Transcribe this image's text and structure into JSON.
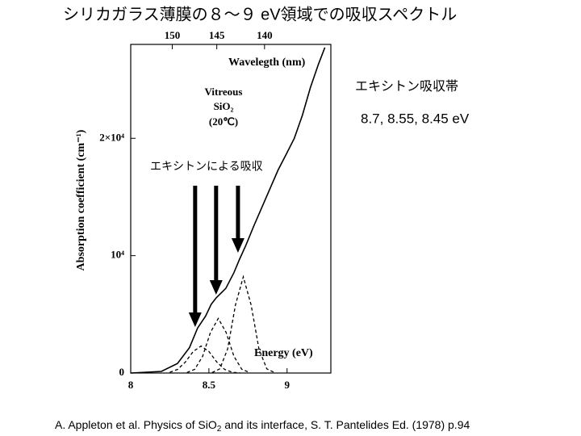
{
  "title": "シリカガラス薄膜の８～９ eV領域での吸収スペクトル",
  "side_note": {
    "heading": "エキシトン吸収帯",
    "values": "8.7, 8.55, 8.45 eV"
  },
  "citation": {
    "before": "A. Appleton et al. Physics of SiO",
    "sub": "2",
    "after": " and its interface, S. T. Pantelides Ed. (1978) p.94"
  },
  "chart_data": {
    "type": "line",
    "xlabel": "Energy (eV)",
    "ylabel": "Absorption coefficient (cm⁻¹)",
    "x2label": "Wavelegth (nm)",
    "xlim": [
      8,
      9.28
    ],
    "xticks": [
      8,
      8.5,
      9
    ],
    "ylim": [
      0,
      28000
    ],
    "yticks": [
      0,
      {
        "value": 10000,
        "label": "10⁴"
      },
      {
        "value": 20000,
        "label": "2×10⁴"
      }
    ],
    "x2scale": "reciprocal",
    "x2lim": [
      154.98,
      133.6
    ],
    "x2ticks": [
      150,
      145,
      140
    ],
    "sample_label": [
      "Vitreous",
      "SiO₂",
      "(20℃)"
    ],
    "arrow_label": "エキシトンによる吸収",
    "arrows": [
      {
        "x": 8.412,
        "from": 15960,
        "to": 3920
      },
      {
        "x": 8.546,
        "from": 15960,
        "to": 6670
      },
      {
        "x": 8.686,
        "from": 15960,
        "to": 10250
      }
    ],
    "series": [
      {
        "color": "#000000",
        "dashed": false,
        "x": [
          8.0,
          8.196,
          8.299,
          8.376,
          8.428,
          8.479,
          8.515,
          8.546,
          8.608,
          8.66,
          8.696,
          8.737,
          8.789,
          8.866,
          8.943,
          8.995,
          9.046,
          9.098,
          9.149,
          9.201,
          9.242
        ],
        "values": [
          0,
          135,
          810,
          2160,
          3840,
          4850,
          5860,
          6400,
          7210,
          8550,
          9700,
          10900,
          12590,
          14950,
          17310,
          18650,
          20000,
          21950,
          24310,
          26330,
          27740
        ]
      },
      {
        "color": "#000000",
        "dashed": true,
        "x": [
          8.25,
          8.3,
          8.35,
          8.4,
          8.45,
          8.5,
          8.55,
          8.6,
          8.65,
          8.7
        ],
        "values": [
          65,
          311,
          945,
          1840,
          2300,
          1840,
          945,
          311,
          65,
          10
        ]
      },
      {
        "color": "#000000",
        "dashed": true,
        "x": [
          8.36,
          8.41,
          8.46,
          8.51,
          8.56,
          8.61,
          8.66,
          8.71,
          8.76
        ],
        "values": [
          41,
          326,
          1424,
          3458,
          4650,
          3458,
          1424,
          326,
          41
        ]
      },
      {
        "color": "#000000",
        "dashed": true,
        "x": [
          8.52,
          8.57,
          8.62,
          8.67,
          8.72,
          8.77,
          8.82,
          8.87,
          8.92
        ],
        "values": [
          32,
          361,
          2050,
          5797,
          8200,
          5797,
          2050,
          361,
          32
        ]
      }
    ]
  }
}
